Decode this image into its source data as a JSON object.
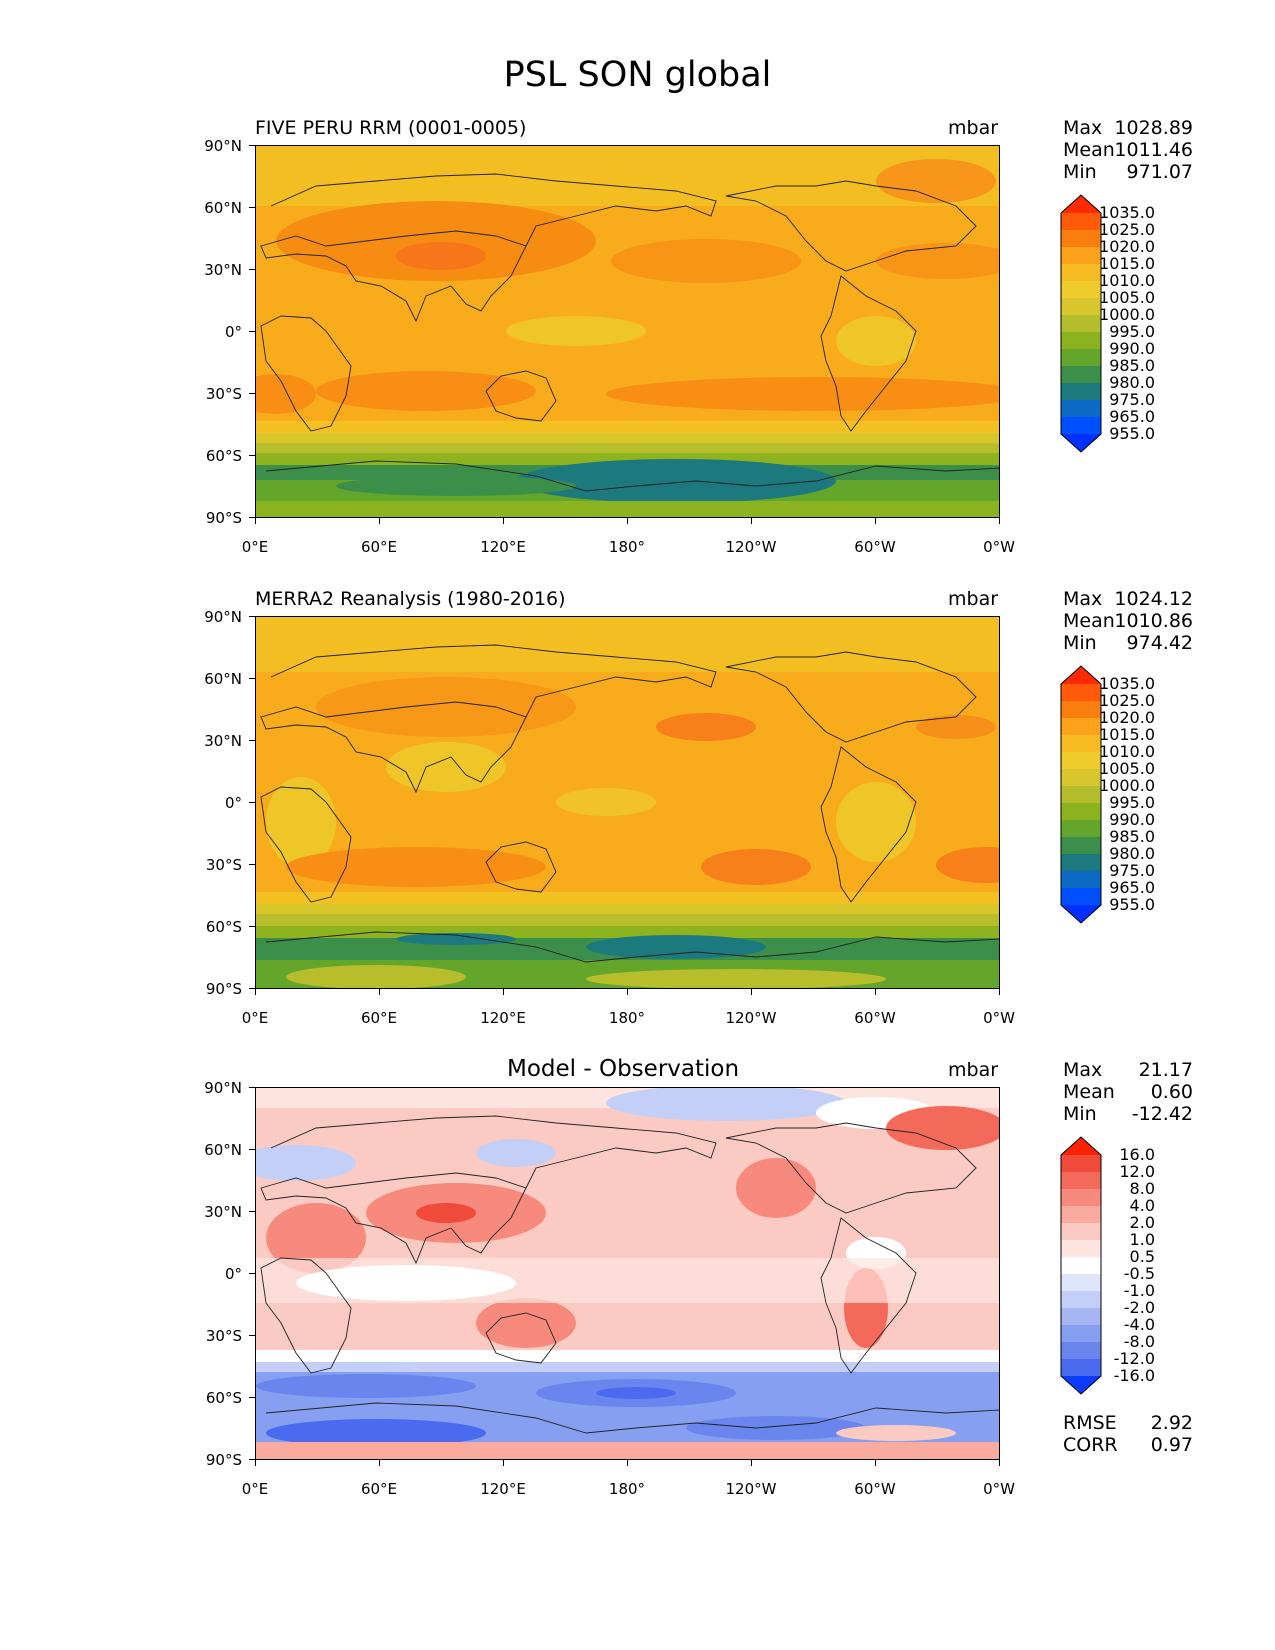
{
  "figure": {
    "title": "PSL SON global",
    "units": "mbar",
    "lat_ticks": [
      "90°N",
      "60°N",
      "30°N",
      "0°",
      "30°S",
      "60°S",
      "90°S"
    ],
    "lon_ticks": [
      "0°E",
      "60°E",
      "120°E",
      "180°",
      "120°W",
      "60°W",
      "0°W"
    ]
  },
  "panels": [
    {
      "subtitle": "FIVE PERU RRM (0001-0005)",
      "centered_title": "",
      "stats": [
        {
          "label": "Max",
          "value": "1028.89"
        },
        {
          "label": "Mean",
          "value": "1011.46"
        },
        {
          "label": "Min",
          "value": "971.07"
        }
      ],
      "colorbar": [
        "1035.0",
        "1025.0",
        "1020.0",
        "1015.0",
        "1010.0",
        "1005.0",
        "1000.0",
        "995.0",
        "990.0",
        "985.0",
        "980.0",
        "975.0",
        "965.0",
        "955.0"
      ],
      "palette": [
        "#ff2a00",
        "#ff5a0a",
        "#fa7e0d",
        "#fba11a",
        "#f7bc22",
        "#efcc2b",
        "#d7c62d",
        "#b4bd2b",
        "#8bb31f",
        "#64a52b",
        "#3b8f4a",
        "#1c7a7f",
        "#0d6ac4",
        "#0050ff",
        "#0030ff"
      ]
    },
    {
      "subtitle": "MERRA2 Reanalysis (1980-2016)",
      "centered_title": "",
      "stats": [
        {
          "label": "Max",
          "value": "1024.12"
        },
        {
          "label": "Mean",
          "value": "1010.86"
        },
        {
          "label": "Min",
          "value": "974.42"
        }
      ],
      "colorbar": [
        "1035.0",
        "1025.0",
        "1020.0",
        "1015.0",
        "1010.0",
        "1005.0",
        "1000.0",
        "995.0",
        "990.0",
        "985.0",
        "980.0",
        "975.0",
        "965.0",
        "955.0"
      ],
      "palette": [
        "#ff2a00",
        "#ff5a0a",
        "#fa7e0d",
        "#fba11a",
        "#f7bc22",
        "#efcc2b",
        "#d7c62d",
        "#b4bd2b",
        "#8bb31f",
        "#64a52b",
        "#3b8f4a",
        "#1c7a7f",
        "#0d6ac4",
        "#0050ff",
        "#0030ff"
      ]
    },
    {
      "subtitle": "",
      "centered_title": "Model - Observation",
      "stats": [
        {
          "label": "Max",
          "value": "21.17"
        },
        {
          "label": "Mean",
          "value": "0.60"
        },
        {
          "label": "Min",
          "value": "-12.42"
        }
      ],
      "colorbar": [
        "16.0",
        "12.0",
        "8.0",
        "4.0",
        "2.0",
        "1.0",
        "0.5",
        "-0.5",
        "-1.0",
        "-2.0",
        "-4.0",
        "-8.0",
        "-12.0",
        "-16.0"
      ],
      "palette": [
        "#ff2200",
        "#f04a3a",
        "#f36a5a",
        "#f78a7c",
        "#f9ab9f",
        "#fbcbc3",
        "#fde4df",
        "#ffffff",
        "#dfe5fb",
        "#c3cff6",
        "#a5b6f2",
        "#879ff0",
        "#6a86ee",
        "#4a6af0",
        "#0a3cff"
      ],
      "extra": [
        {
          "label": "RMSE",
          "value": "2.92"
        },
        {
          "label": "CORR",
          "value": "0.97"
        }
      ]
    }
  ]
}
